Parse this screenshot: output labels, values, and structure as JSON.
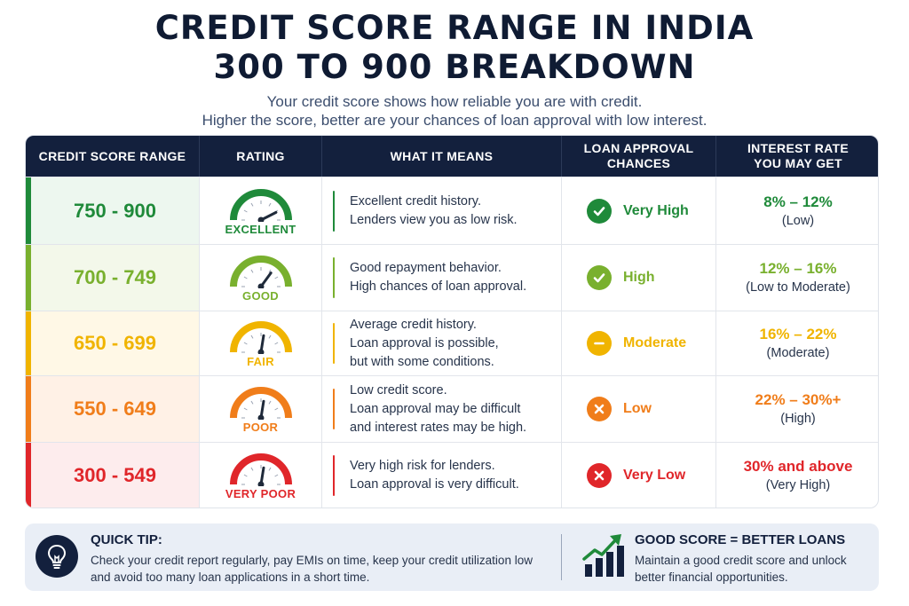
{
  "title": {
    "line1": "CREDIT SCORE RANGE IN INDIA",
    "line2": "300 TO 900 BREAKDOWN"
  },
  "subtitle": {
    "line1": "Your credit score shows how reliable you are with credit.",
    "line2": "Higher the score, better are your chances of loan approval with low interest."
  },
  "table": {
    "headers": {
      "range": "CREDIT SCORE RANGE",
      "rating": "RATING",
      "meaning": "WHAT IT MEANS",
      "chances_line1": "LOAN APPROVAL",
      "chances_line2": "CHANCES",
      "interest_line1": "INTEREST RATE",
      "interest_line2": "YOU MAY GET"
    },
    "rows": [
      {
        "range": "750 - 900",
        "rating": "EXCELLENT",
        "gauge_level": 0.85,
        "meaning": [
          "Excellent credit history.",
          "Lenders view you as low risk."
        ],
        "chance_icon": "check-icon",
        "chance": "Very High",
        "interest": "8% – 12%",
        "interest_note": "(Low)",
        "color": "#1f8a3a",
        "bg": "#edf7ef"
      },
      {
        "range": "700 - 749",
        "rating": "GOOD",
        "gauge_level": 0.7,
        "meaning": [
          "Good repayment behavior.",
          "High chances of loan approval."
        ],
        "chance_icon": "check-icon",
        "chance": "High",
        "interest": "12% – 16%",
        "interest_note": "(Low to Moderate)",
        "color": "#79b02e",
        "bg": "#f3f8ea"
      },
      {
        "range": "650 - 699",
        "rating": "FAIR",
        "gauge_level": 0.55,
        "meaning": [
          "Average credit history.",
          "Loan approval is possible,",
          "but with some conditions."
        ],
        "chance_icon": "minus-icon",
        "chance": "Moderate",
        "interest": "16% – 22%",
        "interest_note": "(Moderate)",
        "color": "#f0b400",
        "bg": "#fff8e6"
      },
      {
        "range": "550 - 649",
        "rating": "POOR",
        "gauge_level": 0.55,
        "meaning": [
          "Low credit score.",
          "Loan approval may be difficult",
          "and interest rates may be high."
        ],
        "chance_icon": "x-icon",
        "chance": "Low",
        "interest": "22% – 30%+",
        "interest_note": "(High)",
        "color": "#f07d1a",
        "bg": "#fff1e6"
      },
      {
        "range": "300 - 549",
        "rating": "VERY POOR",
        "gauge_level": 0.55,
        "meaning": [
          "Very high risk for lenders.",
          "Loan approval is very difficult."
        ],
        "chance_icon": "x-icon",
        "chance": "Very Low",
        "interest": "30% and above",
        "interest_note": "(Very High)",
        "color": "#e0262a",
        "bg": "#fdeced"
      }
    ]
  },
  "footer": {
    "tip_icon": "lightbulb-icon",
    "tip_title": "QUICK TIP:",
    "tip_text": "Check your credit report regularly, pay EMIs on time, keep your credit utilization low and avoid too many loan applications in a short time.",
    "good_icon": "growth-chart-icon",
    "good_title": "GOOD SCORE = BETTER LOANS",
    "good_text": "Maintain a good credit score and unlock better financial opportunities.",
    "accent": "#1f8a3a",
    "navy": "#13203d"
  }
}
